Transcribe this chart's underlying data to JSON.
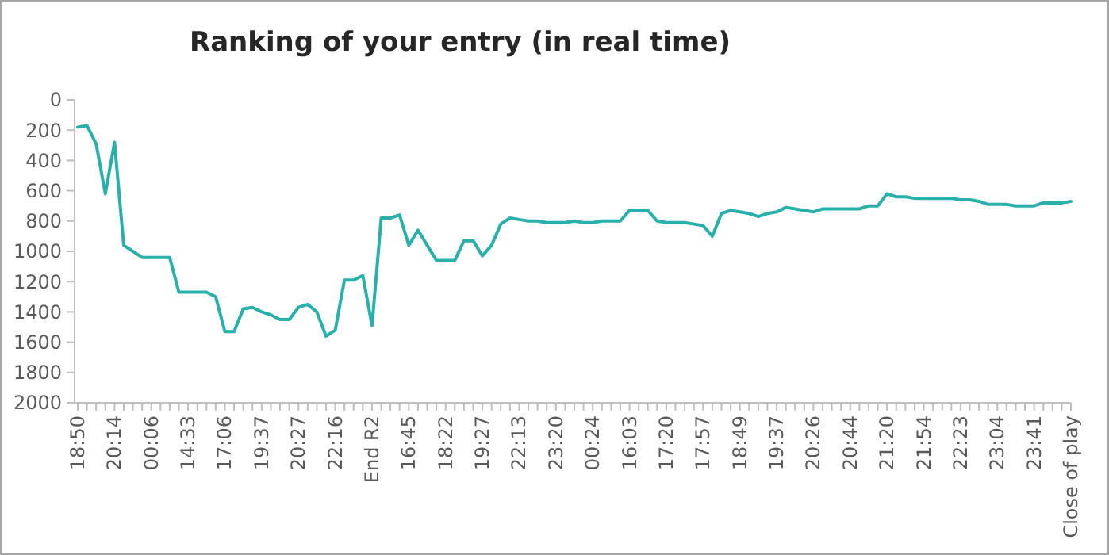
{
  "chart_data": {
    "type": "line",
    "title": "Ranking of your entry (in real time)",
    "categories": [
      "18:50",
      null,
      null,
      null,
      "20:14",
      null,
      null,
      null,
      "00:06",
      null,
      null,
      null,
      "14:33",
      null,
      null,
      null,
      "17:06",
      null,
      null,
      null,
      "19:37",
      null,
      null,
      null,
      "20:27",
      null,
      null,
      null,
      "22:16",
      null,
      null,
      null,
      "End R2",
      null,
      null,
      null,
      "16:45",
      null,
      null,
      null,
      "18:22",
      null,
      null,
      null,
      "19:27",
      null,
      null,
      null,
      "22:13",
      null,
      null,
      null,
      "23:20",
      null,
      null,
      null,
      "00:24",
      null,
      null,
      null,
      "16:03",
      null,
      null,
      null,
      "17:20",
      null,
      null,
      null,
      "17:57",
      null,
      null,
      null,
      "18:49",
      null,
      null,
      null,
      "19:37",
      null,
      null,
      null,
      "20:26",
      null,
      null,
      null,
      "20:44",
      null,
      null,
      null,
      "21:20",
      null,
      null,
      null,
      "21:54",
      null,
      null,
      null,
      "22:23",
      null,
      null,
      null,
      "23:04",
      null,
      null,
      null,
      "23:41",
      null,
      null,
      null,
      "Close of play"
    ],
    "series": [
      {
        "color": "#2ab0ab",
        "values": [
          180,
          170,
          290,
          620,
          280,
          960,
          1000,
          1040,
          1040,
          1040,
          1040,
          1270,
          1270,
          1270,
          1270,
          1300,
          1530,
          1530,
          1380,
          1370,
          1400,
          1420,
          1450,
          1450,
          1370,
          1350,
          1400,
          1560,
          1520,
          1190,
          1190,
          1160,
          1490,
          780,
          780,
          760,
          960,
          860,
          960,
          1060,
          1060,
          1060,
          930,
          930,
          1030,
          960,
          820,
          780,
          790,
          800,
          800,
          810,
          810,
          810,
          800,
          810,
          810,
          800,
          800,
          800,
          730,
          730,
          730,
          800,
          810,
          810,
          810,
          820,
          830,
          900,
          750,
          730,
          740,
          750,
          770,
          750,
          740,
          710,
          720,
          730,
          740,
          720,
          720,
          720,
          720,
          720,
          700,
          700,
          620,
          640,
          640,
          650,
          650,
          650,
          650,
          650,
          660,
          660,
          670,
          690,
          690,
          690,
          700,
          700,
          700,
          680,
          680,
          680,
          670
        ]
      }
    ],
    "ylim": [
      2000,
      0
    ],
    "yticks": [
      0,
      200,
      400,
      600,
      800,
      1000,
      1200,
      1400,
      1600,
      1800,
      2000
    ],
    "grid": false,
    "marker": "none",
    "line_style": "solid"
  }
}
